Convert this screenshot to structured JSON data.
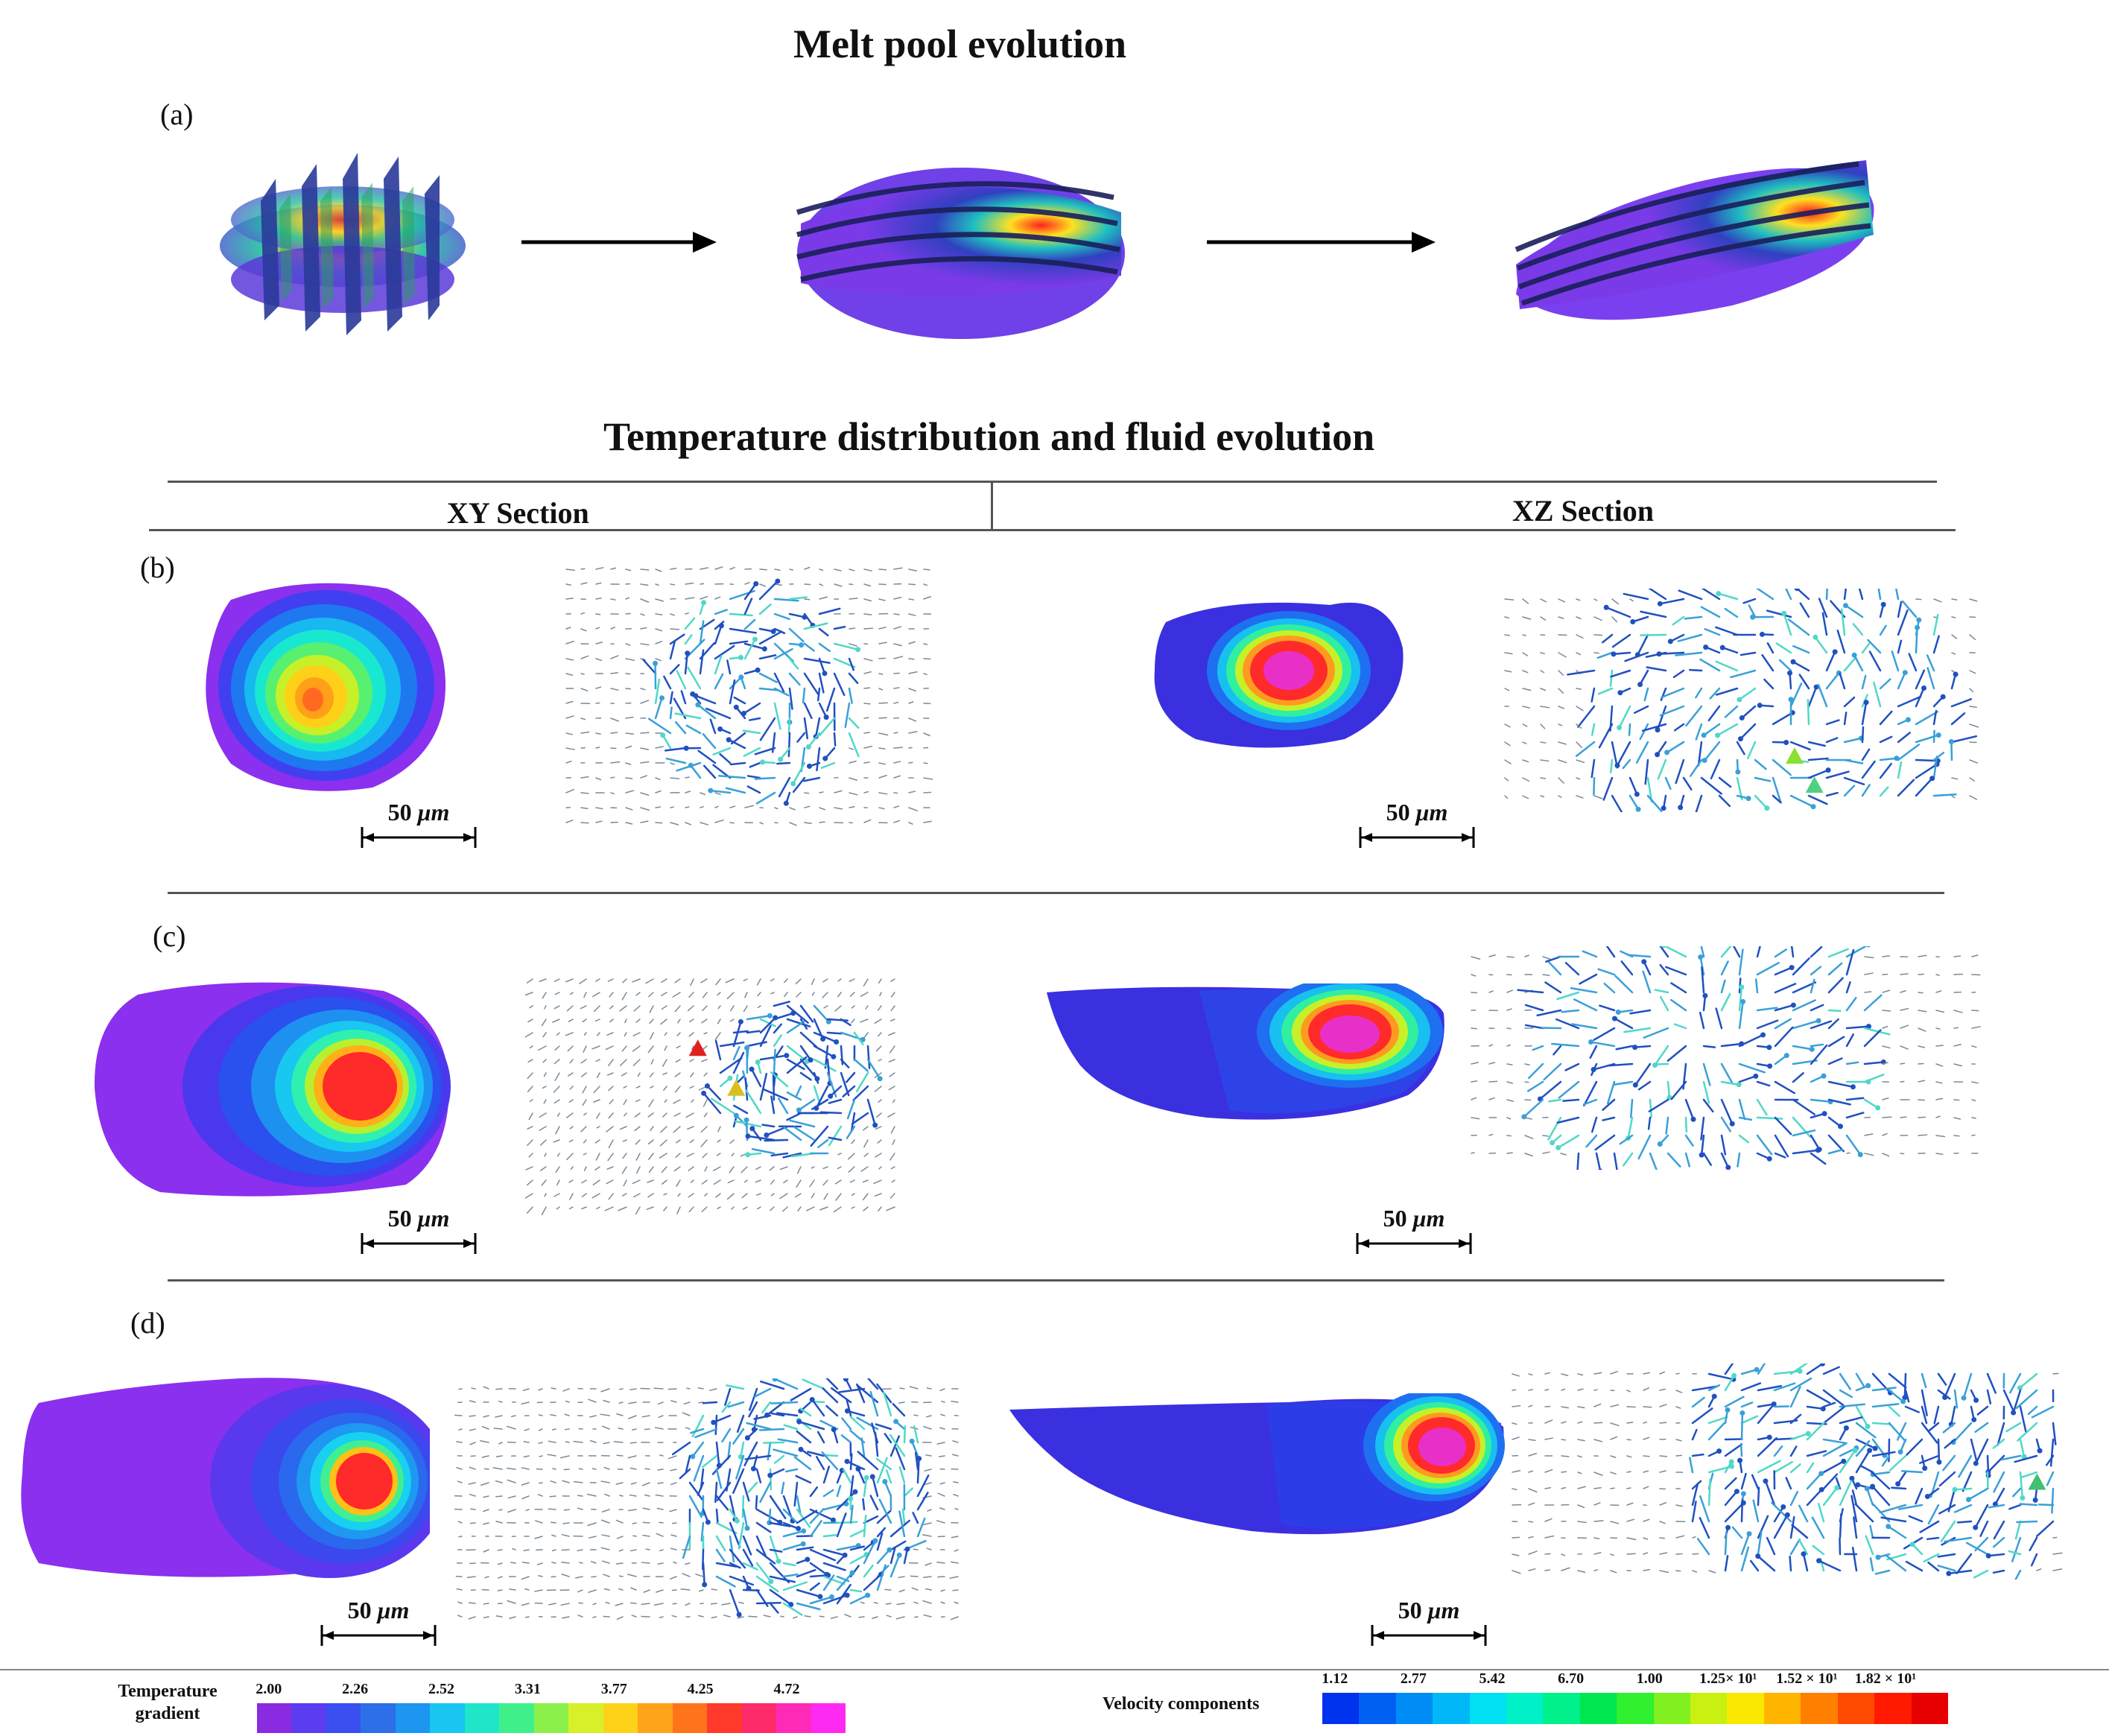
{
  "titles": {
    "melt_pool": "Melt pool evolution",
    "temperature": "Temperature distribution and fluid evolution"
  },
  "sections": {
    "xy": "XY Section",
    "xz": "XZ Section"
  },
  "panels": {
    "a": "(a)",
    "b": "(b)",
    "c": "(c)",
    "d": "(d)"
  },
  "scale_bar": {
    "value": "50",
    "unit": "μm"
  },
  "temperature_legend": {
    "title_line1": "Temperature",
    "title_line2": "gradient",
    "ticks": [
      "2.00",
      "2.26",
      "2.52",
      "3.31",
      "3.77",
      "4.25",
      "4.72"
    ],
    "colors": [
      "#8a2be2",
      "#5b3cf0",
      "#3a4ff0",
      "#2c6fe8",
      "#1c96f0",
      "#19c6f2",
      "#1fe6c9",
      "#3ff08a",
      "#8cf04a",
      "#d8f02a",
      "#ffd21a",
      "#ffa31a",
      "#ff731a",
      "#ff3a2a",
      "#ff2a6a",
      "#ff2ab8",
      "#ff2af2"
    ]
  },
  "velocity_legend": {
    "title": "Velocity components",
    "ticks": [
      "1.12",
      "2.77",
      "5.42",
      "6.70",
      "1.00",
      "1.25× 10¹",
      "1.52 × 10¹",
      "1.82 × 10¹"
    ],
    "colors": [
      "#0033ee",
      "#0060f2",
      "#008cf5",
      "#00b8f8",
      "#00e0f2",
      "#00f0c8",
      "#00f08c",
      "#00e650",
      "#30f030",
      "#80f020",
      "#c8f010",
      "#f8e800",
      "#ffb400",
      "#ff8000",
      "#ff4a00",
      "#ff1a00",
      "#e60000"
    ]
  }
}
